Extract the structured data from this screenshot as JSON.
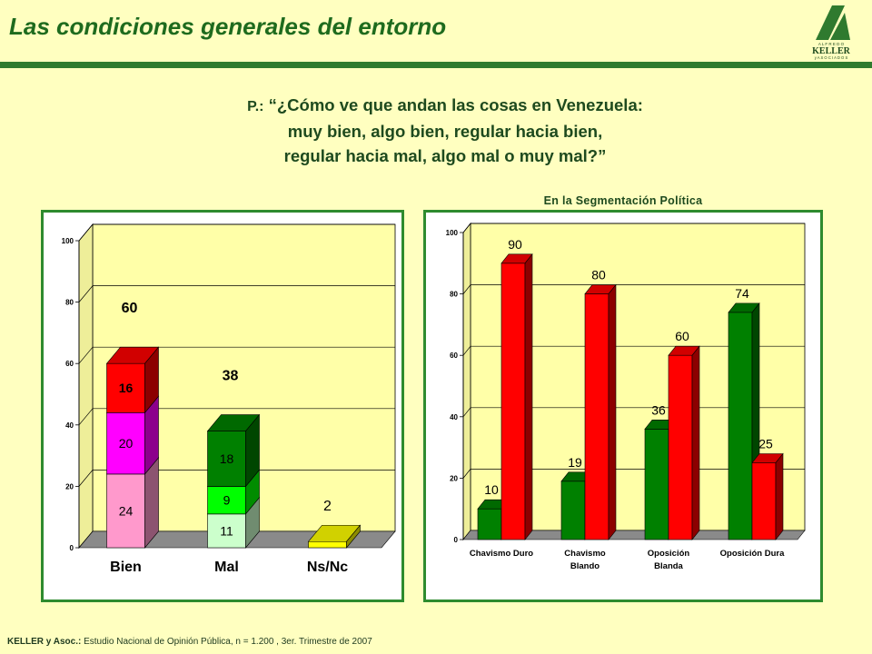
{
  "header": {
    "title": "Las condiciones generales del entorno",
    "logo_top": "A L F R E D O",
    "logo_name": "KELLER",
    "logo_bottom": "y   A S O C I A D O S"
  },
  "question": {
    "prefix": "P.:",
    "line1": "“¿Cómo ve que andan las cosas en Venezuela:",
    "line2": "muy bien, algo bien, regular hacia bien,",
    "line3": "regular hacia mal, algo mal o muy mal?”"
  },
  "footer": {
    "source_label": "KELLER y Asoc.:",
    "source_text": " Estudio Nacional de Opinión Pública, n = 1.200 , 3er. Trimestre de 2007"
  },
  "colors": {
    "title_green": "#1e6b1e",
    "panel_border": "#2e8b2e",
    "page_bg": "#ffffc0",
    "plot_bg": "#ffffa8"
  },
  "chart_data": [
    {
      "type": "bar",
      "stacked": true,
      "title": "",
      "ylim": [
        0,
        100
      ],
      "yticks": [
        0,
        20,
        40,
        60,
        80,
        100
      ],
      "categories": [
        "Bien",
        "Mal",
        "Ns/Nc"
      ],
      "totals": [
        60,
        38,
        2
      ],
      "stacks": [
        [
          {
            "value": 24,
            "color": "#ff99cc",
            "label": "24"
          },
          {
            "value": 20,
            "color": "#ff00ff",
            "label": "20"
          },
          {
            "value": 16,
            "color": "#ff0000",
            "label": "16"
          }
        ],
        [
          {
            "value": 11,
            "color": "#ccffcc",
            "label": "11"
          },
          {
            "value": 9,
            "color": "#00ff00",
            "label": "9"
          },
          {
            "value": 18,
            "color": "#008000",
            "label": "18"
          }
        ],
        [
          {
            "value": 2,
            "color": "#ffff00",
            "label": ""
          }
        ]
      ],
      "grid": true,
      "legend": "none"
    },
    {
      "type": "bar",
      "title": "En la Segmentación Política",
      "ylim": [
        0,
        100
      ],
      "yticks": [
        0,
        20,
        40,
        60,
        80,
        100
      ],
      "categories": [
        [
          "Chavismo Duro"
        ],
        [
          "Chavismo",
          "Blando"
        ],
        [
          "Oposición",
          "Blanda"
        ],
        [
          "Oposición Dura"
        ]
      ],
      "series": [
        {
          "values": [
            10,
            19,
            36,
            74
          ],
          "color": "#008000"
        },
        {
          "values": [
            90,
            80,
            60,
            25
          ],
          "color": "#ff0000"
        }
      ],
      "grid": true,
      "legend": "none"
    }
  ]
}
